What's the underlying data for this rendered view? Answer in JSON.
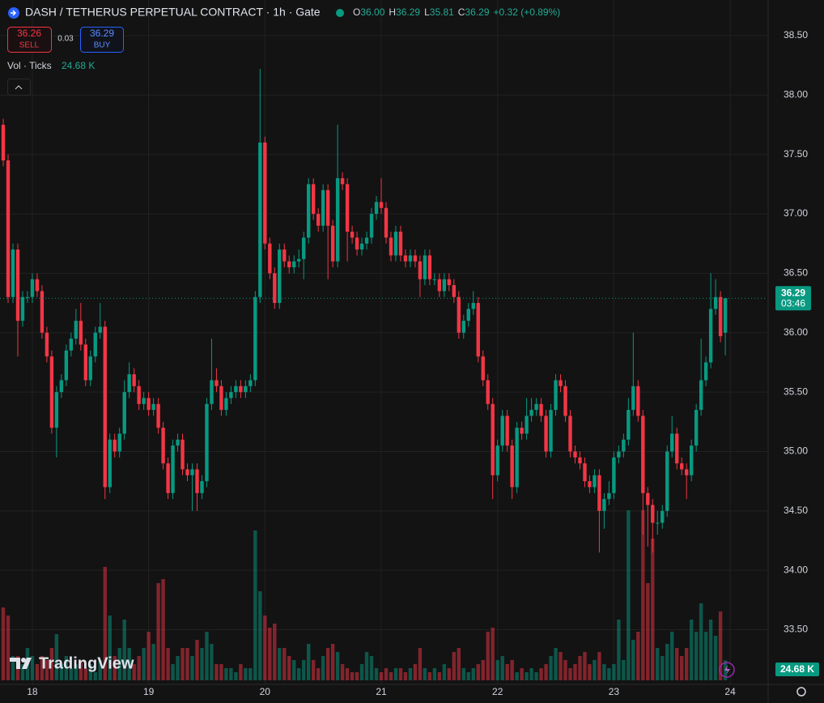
{
  "header": {
    "symbol": "DASH / TETHERUS PERPETUAL CONTRACT · 1h · Gate",
    "legend": [
      {
        "label": "O",
        "value": "36.00"
      },
      {
        "label": "H",
        "value": "36.29"
      },
      {
        "label": "L",
        "value": "35.81"
      },
      {
        "label": "C",
        "value": "36.29"
      }
    ],
    "change": "+0.32 (+0.89%)"
  },
  "trade": {
    "sell_price": "36.26",
    "sell": "SELL",
    "spread": "0.03",
    "buy_price": "36.29",
    "buy": "BUY"
  },
  "logo": "TradingView",
  "chart_data": {
    "type": "candlestick",
    "up_color": "#089981",
    "down_color": "#f23645",
    "grid": true,
    "ylim": [
      33.04,
      38.8
    ],
    "yticks": [
      {
        "value": 33.5,
        "label": "33.50"
      },
      {
        "value": 34,
        "label": "34.00"
      },
      {
        "value": 34.5,
        "label": "34.50"
      },
      {
        "value": 35,
        "label": "35.00"
      },
      {
        "value": 35.5,
        "label": "35.50"
      },
      {
        "value": 36,
        "label": "36.00"
      },
      {
        "value": 36.5,
        "label": "36.50"
      },
      {
        "value": 37,
        "label": "37.00"
      },
      {
        "value": 37.5,
        "label": "37.50"
      },
      {
        "value": 38,
        "label": "38.00"
      },
      {
        "value": 38.5,
        "label": "38.50"
      }
    ],
    "xlim": [
      -0.67,
      157.67
    ],
    "xticks": [
      {
        "value": 6,
        "label": "18"
      },
      {
        "value": 30,
        "label": "19"
      },
      {
        "value": 54,
        "label": "20"
      },
      {
        "value": 78,
        "label": "21"
      },
      {
        "value": 102,
        "label": "22"
      },
      {
        "value": 126,
        "label": "23"
      },
      {
        "value": 150,
        "label": "24"
      }
    ],
    "countdown": "03:46",
    "ohlc": [
      [
        37.75,
        37.8,
        37.4,
        37.45
      ],
      [
        37.45,
        37.5,
        36.25,
        36.3
      ],
      [
        36.3,
        36.75,
        36.25,
        36.7
      ],
      [
        36.7,
        36.75,
        35.8,
        36.1
      ],
      [
        36.1,
        36.35,
        36.05,
        36.3
      ],
      [
        36.3,
        36.35,
        36.25,
        36.3
      ],
      [
        36.3,
        36.5,
        36.25,
        36.45
      ],
      [
        36.45,
        36.5,
        36.3,
        36.35
      ],
      [
        36.35,
        36.4,
        35.95,
        36.0
      ],
      [
        36.0,
        36.05,
        35.75,
        35.8
      ],
      [
        35.8,
        35.85,
        35.15,
        35.2
      ],
      [
        35.2,
        35.55,
        34.95,
        35.5
      ],
      [
        35.5,
        35.65,
        35.45,
        35.6
      ],
      [
        35.6,
        35.9,
        35.55,
        35.85
      ],
      [
        35.85,
        36.0,
        35.8,
        35.95
      ],
      [
        35.95,
        36.2,
        35.9,
        36.1
      ],
      [
        36.1,
        36.25,
        35.85,
        35.9
      ],
      [
        35.9,
        35.95,
        35.55,
        35.6
      ],
      [
        35.6,
        35.85,
        35.55,
        35.8
      ],
      [
        35.8,
        36.05,
        35.75,
        36.0
      ],
      [
        36.0,
        36.25,
        35.95,
        36.05
      ],
      [
        36.05,
        36.1,
        34.6,
        34.7
      ],
      [
        34.7,
        35.15,
        34.65,
        35.1
      ],
      [
        35.1,
        35.15,
        34.95,
        35.0
      ],
      [
        35.0,
        35.2,
        34.95,
        35.15
      ],
      [
        35.15,
        35.6,
        35.1,
        35.5
      ],
      [
        35.5,
        35.75,
        35.45,
        35.65
      ],
      [
        35.65,
        35.7,
        35.5,
        35.55
      ],
      [
        35.55,
        35.6,
        35.35,
        35.4
      ],
      [
        35.4,
        35.5,
        35.35,
        35.45
      ],
      [
        35.45,
        35.5,
        35.3,
        35.35
      ],
      [
        35.35,
        35.45,
        35.3,
        35.4
      ],
      [
        35.4,
        35.45,
        35.15,
        35.2
      ],
      [
        35.2,
        35.25,
        34.85,
        34.9
      ],
      [
        34.9,
        34.95,
        34.6,
        34.65
      ],
      [
        34.65,
        35.1,
        34.6,
        35.05
      ],
      [
        35.05,
        35.15,
        35.0,
        35.1
      ],
      [
        35.1,
        35.15,
        34.8,
        34.85
      ],
      [
        34.85,
        34.9,
        34.75,
        34.8
      ],
      [
        34.8,
        34.9,
        34.5,
        34.85
      ],
      [
        34.85,
        34.9,
        34.5,
        34.65
      ],
      [
        34.65,
        34.8,
        34.6,
        34.75
      ],
      [
        34.75,
        35.45,
        34.7,
        35.4
      ],
      [
        35.4,
        35.95,
        35.35,
        35.6
      ],
      [
        35.6,
        35.7,
        35.5,
        35.55
      ],
      [
        35.55,
        35.6,
        35.3,
        35.35
      ],
      [
        35.35,
        35.5,
        35.3,
        35.45
      ],
      [
        35.45,
        35.55,
        35.4,
        35.5
      ],
      [
        35.5,
        35.6,
        35.45,
        35.55
      ],
      [
        35.55,
        35.6,
        35.45,
        35.5
      ],
      [
        35.5,
        35.6,
        35.45,
        35.55
      ],
      [
        35.55,
        35.65,
        35.5,
        35.6
      ],
      [
        35.6,
        36.35,
        35.55,
        36.3
      ],
      [
        36.3,
        38.22,
        36.25,
        37.6
      ],
      [
        37.6,
        37.65,
        36.7,
        36.75
      ],
      [
        36.75,
        36.8,
        36.45,
        36.5
      ],
      [
        36.5,
        36.55,
        36.2,
        36.25
      ],
      [
        36.25,
        36.75,
        36.2,
        36.7
      ],
      [
        36.7,
        36.75,
        36.55,
        36.6
      ],
      [
        36.6,
        36.65,
        36.5,
        36.55
      ],
      [
        36.55,
        36.65,
        36.5,
        36.6
      ],
      [
        36.6,
        36.7,
        36.55,
        36.62
      ],
      [
        36.62,
        36.85,
        36.45,
        36.8
      ],
      [
        36.8,
        37.3,
        36.75,
        37.25
      ],
      [
        37.25,
        37.3,
        36.95,
        37.0
      ],
      [
        37.0,
        37.05,
        36.85,
        36.9
      ],
      [
        36.9,
        37.25,
        36.85,
        37.2
      ],
      [
        37.2,
        37.25,
        36.45,
        36.9
      ],
      [
        36.9,
        36.95,
        36.55,
        36.6
      ],
      [
        36.6,
        37.75,
        36.55,
        37.3
      ],
      [
        37.3,
        37.35,
        37.2,
        37.25
      ],
      [
        37.25,
        37.3,
        36.6,
        36.85
      ],
      [
        36.85,
        36.9,
        36.75,
        36.8
      ],
      [
        36.8,
        36.85,
        36.65,
        36.7
      ],
      [
        36.7,
        36.8,
        36.65,
        36.75
      ],
      [
        36.75,
        36.85,
        36.7,
        36.8
      ],
      [
        36.8,
        37.05,
        36.75,
        37.0
      ],
      [
        37.0,
        37.15,
        36.95,
        37.1
      ],
      [
        37.1,
        37.3,
        37.0,
        37.05
      ],
      [
        37.05,
        37.1,
        36.75,
        36.8
      ],
      [
        36.8,
        36.85,
        36.6,
        36.65
      ],
      [
        36.65,
        36.9,
        36.6,
        36.85
      ],
      [
        36.85,
        36.9,
        36.6,
        36.65
      ],
      [
        36.65,
        36.7,
        36.55,
        36.6
      ],
      [
        36.6,
        36.7,
        36.55,
        36.65
      ],
      [
        36.65,
        36.7,
        36.55,
        36.6
      ],
      [
        36.6,
        36.65,
        36.3,
        36.45
      ],
      [
        36.45,
        36.7,
        36.4,
        36.65
      ],
      [
        36.65,
        36.7,
        36.4,
        36.45
      ],
      [
        36.45,
        36.5,
        36.4,
        36.45
      ],
      [
        36.45,
        36.5,
        36.3,
        36.35
      ],
      [
        36.35,
        36.5,
        36.3,
        36.45
      ],
      [
        36.45,
        36.5,
        36.35,
        36.4
      ],
      [
        36.4,
        36.45,
        36.25,
        36.3
      ],
      [
        36.3,
        36.35,
        35.95,
        36.0
      ],
      [
        36.0,
        36.15,
        35.95,
        36.1
      ],
      [
        36.1,
        36.25,
        36.05,
        36.2
      ],
      [
        36.2,
        36.35,
        36.15,
        36.25
      ],
      [
        36.25,
        36.3,
        35.75,
        35.8
      ],
      [
        35.8,
        35.85,
        35.55,
        35.6
      ],
      [
        35.6,
        35.65,
        35.35,
        35.4
      ],
      [
        35.4,
        35.45,
        34.6,
        34.8
      ],
      [
        34.8,
        35.1,
        34.75,
        35.05
      ],
      [
        35.05,
        35.35,
        35.0,
        35.3
      ],
      [
        35.3,
        35.35,
        35.0,
        35.05
      ],
      [
        35.05,
        35.1,
        34.6,
        34.7
      ],
      [
        34.7,
        35.25,
        34.65,
        35.2
      ],
      [
        35.2,
        35.25,
        35.1,
        35.15
      ],
      [
        35.15,
        35.45,
        35.1,
        35.3
      ],
      [
        35.3,
        35.45,
        35.25,
        35.35
      ],
      [
        35.35,
        35.45,
        35.3,
        35.4
      ],
      [
        35.4,
        35.45,
        35.25,
        35.3
      ],
      [
        35.3,
        35.35,
        34.95,
        35.0
      ],
      [
        35.0,
        35.4,
        34.95,
        35.35
      ],
      [
        35.35,
        35.65,
        35.3,
        35.6
      ],
      [
        35.6,
        35.65,
        35.5,
        35.55
      ],
      [
        35.55,
        35.6,
        35.25,
        35.3
      ],
      [
        35.3,
        35.35,
        34.95,
        35.0
      ],
      [
        35.0,
        35.05,
        34.9,
        34.95
      ],
      [
        34.95,
        35.0,
        34.85,
        34.9
      ],
      [
        34.9,
        34.95,
        34.7,
        34.75
      ],
      [
        34.75,
        34.8,
        34.65,
        34.7
      ],
      [
        34.7,
        34.85,
        34.65,
        34.8
      ],
      [
        34.8,
        34.85,
        34.15,
        34.5
      ],
      [
        34.5,
        34.65,
        34.35,
        34.6
      ],
      [
        34.6,
        34.75,
        34.55,
        34.65
      ],
      [
        34.65,
        35.0,
        34.6,
        34.95
      ],
      [
        34.95,
        35.05,
        34.9,
        35.0
      ],
      [
        35.0,
        35.15,
        34.95,
        35.1
      ],
      [
        35.1,
        35.45,
        35.05,
        35.35
      ],
      [
        35.35,
        36.0,
        35.3,
        35.55
      ],
      [
        35.55,
        35.6,
        35.25,
        35.3
      ],
      [
        35.3,
        35.35,
        34.3,
        34.65
      ],
      [
        34.65,
        34.7,
        34.2,
        34.55
      ],
      [
        34.55,
        34.6,
        34.15,
        34.4
      ],
      [
        34.4,
        34.5,
        34.3,
        34.4
      ],
      [
        34.4,
        34.55,
        34.35,
        34.5
      ],
      [
        34.5,
        35.05,
        34.45,
        35.0
      ],
      [
        35.0,
        35.3,
        34.95,
        35.15
      ],
      [
        35.15,
        35.2,
        34.85,
        34.9
      ],
      [
        34.9,
        34.95,
        34.8,
        34.85
      ],
      [
        34.85,
        34.9,
        34.6,
        34.8
      ],
      [
        34.8,
        35.1,
        34.75,
        35.05
      ],
      [
        35.05,
        35.4,
        35.0,
        35.35
      ],
      [
        35.35,
        35.95,
        35.3,
        35.6
      ],
      [
        35.6,
        35.8,
        35.55,
        35.75
      ],
      [
        35.75,
        36.5,
        35.7,
        36.2
      ],
      [
        36.2,
        36.45,
        36.15,
        36.3
      ],
      [
        36.3,
        36.35,
        35.92,
        35.97
      ],
      [
        36.0,
        36.29,
        35.81,
        36.29
      ]
    ],
    "volume": {
      "name": "Vol · Ticks",
      "last_label": "24.68 K",
      "values": [
        90,
        80,
        30,
        30,
        20,
        40,
        30,
        20,
        30,
        25,
        40,
        57,
        20,
        30,
        15,
        20,
        25,
        15,
        20,
        10,
        25,
        140,
        80,
        30,
        40,
        75,
        40,
        20,
        30,
        40,
        60,
        45,
        120,
        125,
        40,
        20,
        30,
        40,
        40,
        30,
        50,
        40,
        60,
        45,
        20,
        20,
        15,
        15,
        10,
        20,
        15,
        15,
        185,
        110,
        80,
        65,
        70,
        40,
        40,
        30,
        25,
        15,
        25,
        45,
        25,
        15,
        30,
        40,
        45,
        35,
        20,
        15,
        10,
        10,
        20,
        35,
        30,
        15,
        10,
        15,
        10,
        15,
        15,
        10,
        15,
        20,
        40,
        15,
        10,
        15,
        10,
        20,
        15,
        35,
        40,
        15,
        10,
        15,
        20,
        25,
        60,
        65,
        25,
        30,
        20,
        25,
        10,
        15,
        10,
        15,
        10,
        15,
        20,
        30,
        40,
        35,
        25,
        15,
        20,
        30,
        35,
        20,
        25,
        35,
        20,
        15,
        20,
        75,
        25,
        210,
        50,
        60,
        210,
        120,
        175,
        40,
        30,
        45,
        60,
        40,
        30,
        40,
        75,
        60,
        95,
        60,
        75,
        55,
        85,
        24.68
      ]
    }
  }
}
